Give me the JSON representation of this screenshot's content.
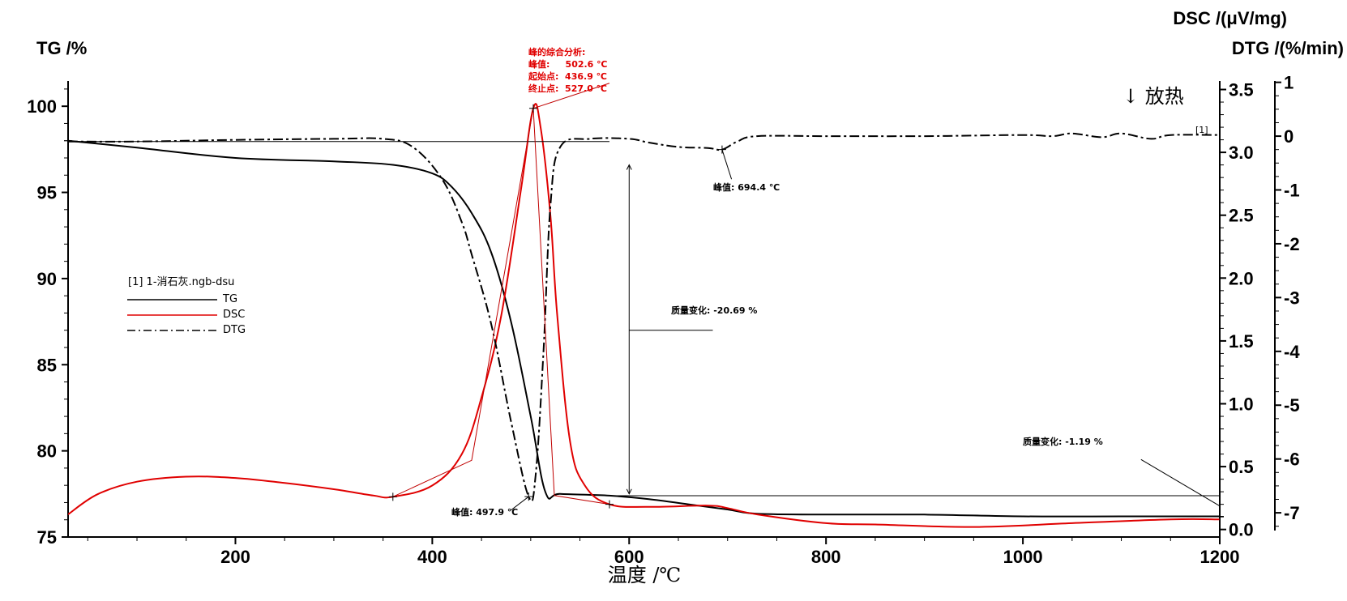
{
  "chart_data": {
    "type": "line",
    "x": {
      "label": "温度 /℃",
      "range": [
        30,
        1200
      ],
      "ticks": [
        200,
        400,
        600,
        800,
        1000,
        1200
      ],
      "tick_labels": [
        "200",
        "400",
        "600",
        "800",
        "1000",
        "1200"
      ]
    },
    "y_tg": {
      "label": "TG /%",
      "range": [
        75,
        101.7
      ],
      "ticks": [
        75,
        80,
        85,
        90,
        95,
        100
      ],
      "tick_labels": [
        "75",
        "80",
        "85",
        "90",
        "95",
        "100"
      ]
    },
    "y_dsc": {
      "label": "DSC /(μV/mg)",
      "range": [
        -0.06,
        3.6
      ],
      "ticks": [
        0.0,
        0.5,
        1.0,
        1.5,
        2.0,
        2.5,
        3.0,
        3.5
      ],
      "tick_labels": [
        "0.0",
        "0.5",
        "1.0",
        "1.5",
        "2.0",
        "2.5",
        "3.0",
        "3.5"
      ]
    },
    "y_dtg": {
      "label": "DTG /(%/min)",
      "range": [
        -7.45,
        1.1
      ],
      "ticks": [
        1,
        0,
        -1,
        -2,
        -3,
        -4,
        -5,
        -6,
        -7
      ],
      "tick_labels": [
        "1",
        "0",
        "-1",
        "-2",
        "-3",
        "-4",
        "-5",
        "-6",
        "-7"
      ]
    },
    "series": [
      {
        "name": "TG",
        "axis": "y_tg",
        "color": "#000000",
        "style": "solid",
        "points": [
          [
            30,
            98.0
          ],
          [
            100,
            97.6
          ],
          [
            200,
            97.0
          ],
          [
            300,
            96.8
          ],
          [
            360,
            96.6
          ],
          [
            400,
            96.1
          ],
          [
            420,
            95.3
          ],
          [
            440,
            93.8
          ],
          [
            460,
            91.5
          ],
          [
            480,
            87.5
          ],
          [
            500,
            82.0
          ],
          [
            515,
            77.6
          ],
          [
            530,
            77.5
          ],
          [
            580,
            77.4
          ],
          [
            620,
            77.2
          ],
          [
            660,
            76.9
          ],
          [
            700,
            76.6
          ],
          [
            730,
            76.35
          ],
          [
            800,
            76.3
          ],
          [
            900,
            76.3
          ],
          [
            1000,
            76.2
          ],
          [
            1100,
            76.2
          ],
          [
            1200,
            76.2
          ]
        ]
      },
      {
        "name": "DSC",
        "axis": "y_dsc",
        "color": "#e00000",
        "style": "solid",
        "points": [
          [
            30,
            0.12
          ],
          [
            60,
            0.28
          ],
          [
            100,
            0.38
          ],
          [
            150,
            0.42
          ],
          [
            200,
            0.41
          ],
          [
            250,
            0.37
          ],
          [
            300,
            0.32
          ],
          [
            340,
            0.27
          ],
          [
            360,
            0.26
          ],
          [
            400,
            0.35
          ],
          [
            430,
            0.6
          ],
          [
            450,
            1.05
          ],
          [
            470,
            1.7
          ],
          [
            490,
            2.7
          ],
          [
            502.6,
            3.35
          ],
          [
            510,
            3.2
          ],
          [
            520,
            2.5
          ],
          [
            527,
            1.7
          ],
          [
            540,
            0.7
          ],
          [
            555,
            0.35
          ],
          [
            580,
            0.2
          ],
          [
            620,
            0.18
          ],
          [
            680,
            0.19
          ],
          [
            700,
            0.17
          ],
          [
            730,
            0.12
          ],
          [
            800,
            0.05
          ],
          [
            850,
            0.04
          ],
          [
            950,
            0.02
          ],
          [
            1050,
            0.05
          ],
          [
            1150,
            0.08
          ],
          [
            1200,
            0.08
          ]
        ]
      },
      {
        "name": "DTG",
        "axis": "y_dtg",
        "color": "#000000",
        "style": "dashdot",
        "points": [
          [
            30,
            -0.1
          ],
          [
            100,
            -0.1
          ],
          [
            200,
            -0.07
          ],
          [
            300,
            -0.05
          ],
          [
            350,
            -0.05
          ],
          [
            380,
            -0.2
          ],
          [
            410,
            -0.8
          ],
          [
            430,
            -1.6
          ],
          [
            440,
            -2.2
          ],
          [
            460,
            -3.5
          ],
          [
            480,
            -5.3
          ],
          [
            497.9,
            -6.7
          ],
          [
            505,
            -6.3
          ],
          [
            513,
            -4.0
          ],
          [
            520,
            -1.3
          ],
          [
            530,
            -0.2
          ],
          [
            560,
            -0.05
          ],
          [
            600,
            -0.05
          ],
          [
            620,
            -0.12
          ],
          [
            650,
            -0.2
          ],
          [
            680,
            -0.22
          ],
          [
            694.4,
            -0.25
          ],
          [
            710,
            -0.1
          ],
          [
            730,
            0.0
          ],
          [
            800,
            0.0
          ],
          [
            900,
            0.0
          ],
          [
            1000,
            0.02
          ],
          [
            1030,
            0.0
          ],
          [
            1050,
            0.05
          ],
          [
            1080,
            -0.02
          ],
          [
            1100,
            0.05
          ],
          [
            1130,
            -0.05
          ],
          [
            1150,
            0.02
          ],
          [
            1200,
            0.02
          ]
        ]
      }
    ]
  },
  "legend": {
    "file": "[1] 1-消石灰.ngb-dsu",
    "items": [
      {
        "label": "TG",
        "color": "#000000",
        "style": "solid"
      },
      {
        "label": "DSC",
        "color": "#e00000",
        "style": "solid"
      },
      {
        "label": "DTG",
        "color": "#000000",
        "style": "dashdot"
      }
    ]
  },
  "annotations": {
    "peak_analysis": {
      "title": "峰的综合分析:",
      "lines": [
        "峰值:     502.6 ℃",
        "起始点:  436.9 ℃",
        "终止点:  527.0 ℃"
      ]
    },
    "dtg_peak_1": "峰值: 497.9 ℃",
    "dtg_peak_2": "峰值: 694.4 ℃",
    "mass_change_1": "质量变化: -20.69 %",
    "mass_change_2": "质量变化: -1.19 %",
    "exo": "↓ 放热",
    "curve_tag": "[1]"
  }
}
